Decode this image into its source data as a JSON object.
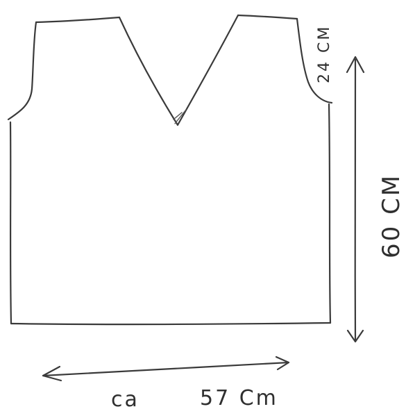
{
  "diagram": {
    "labels": {
      "armhole_depth": "24 CM",
      "length": "60 CM",
      "width_prefix": "ca",
      "width_value": "57 Cm"
    }
  }
}
